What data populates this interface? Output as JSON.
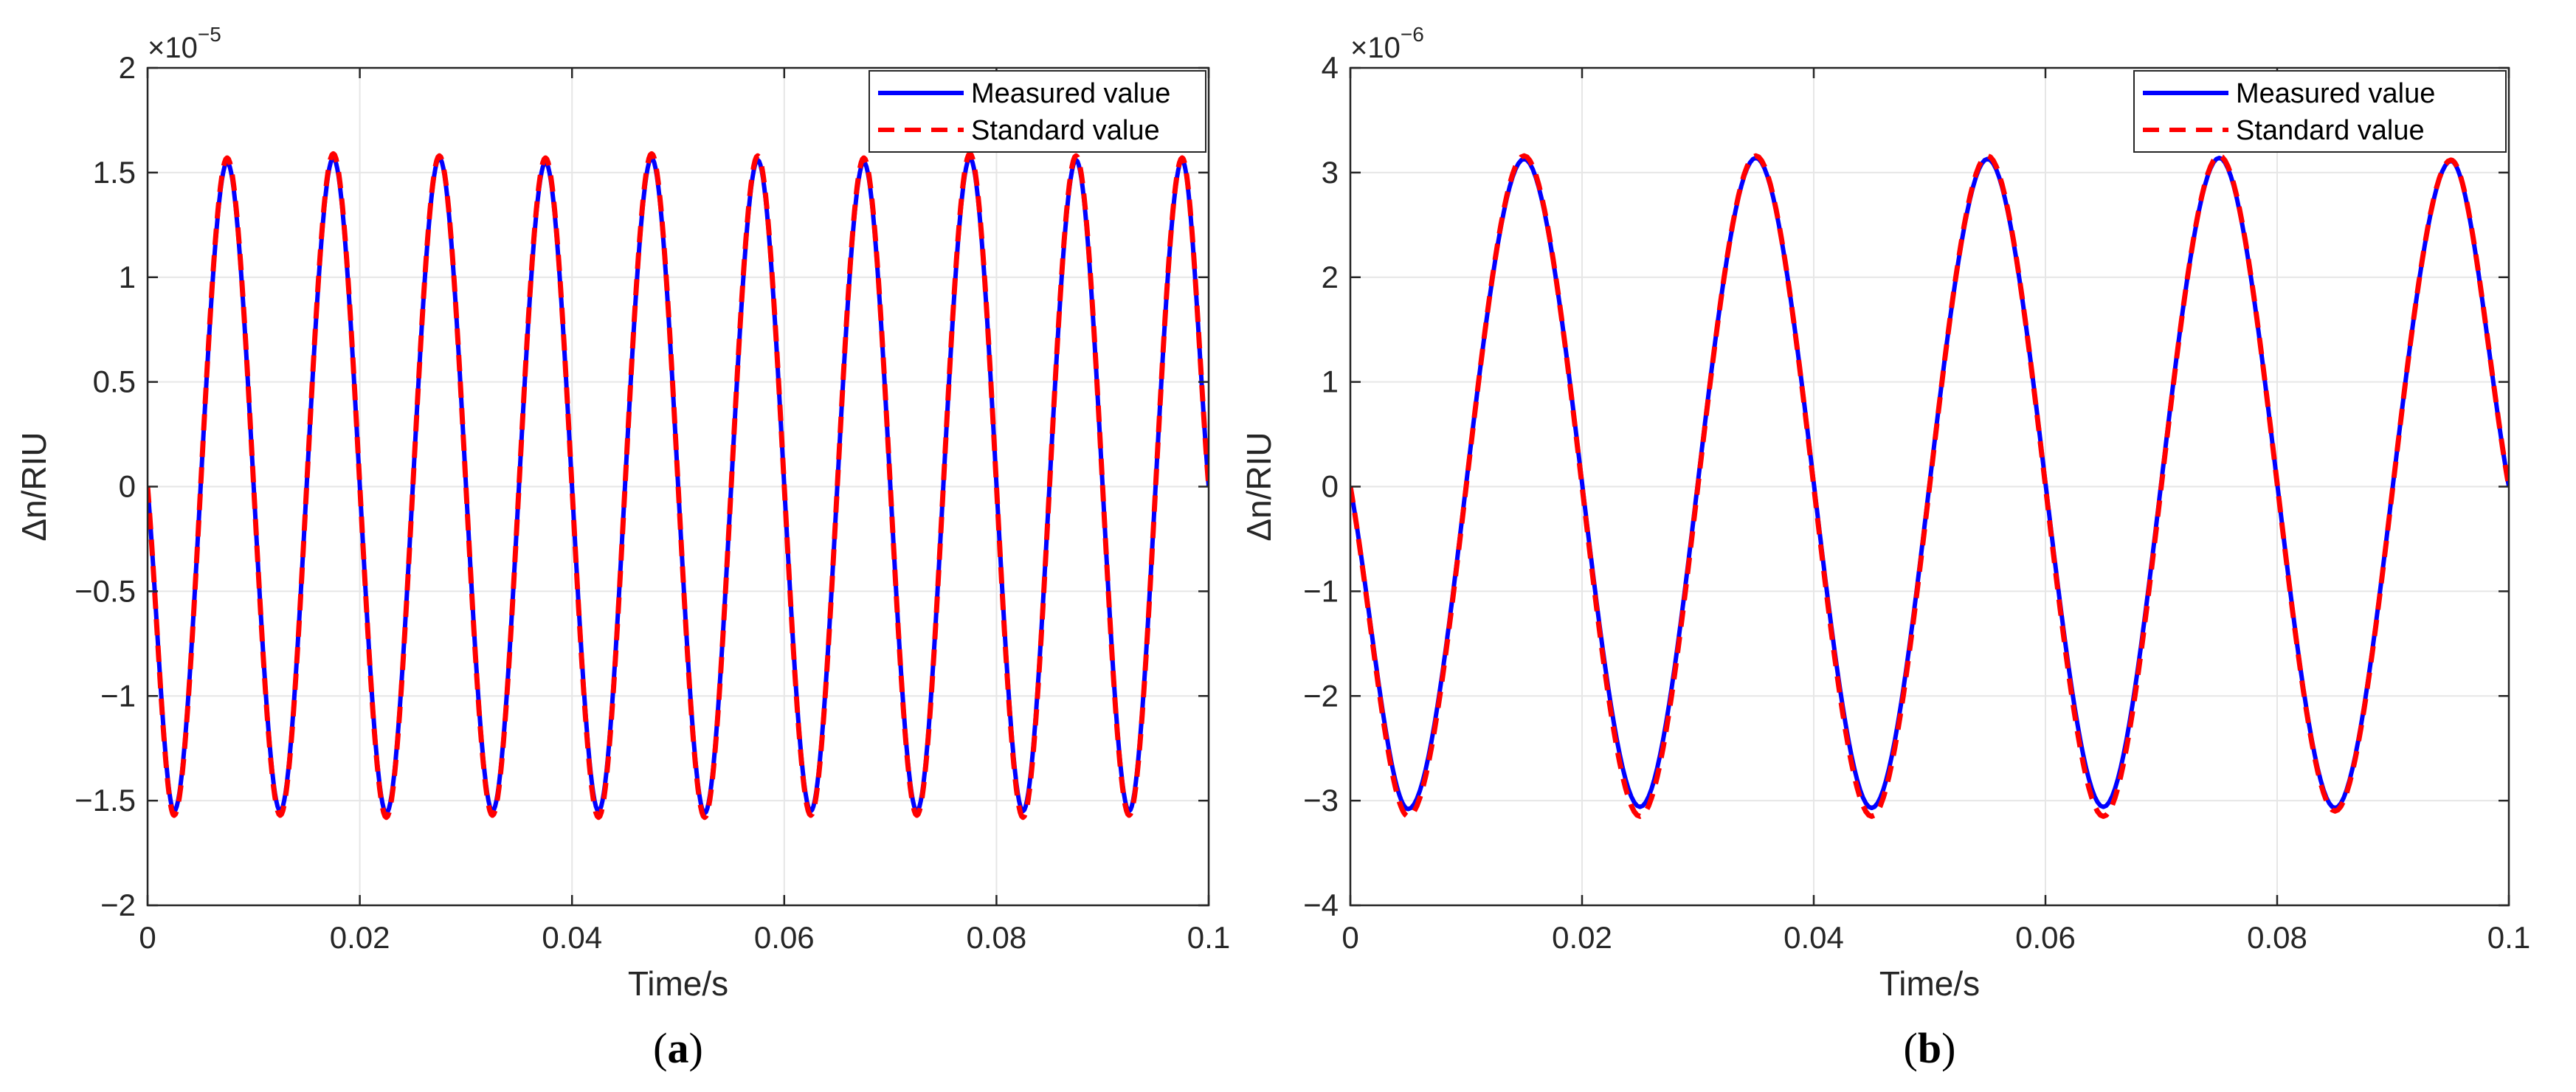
{
  "colors": {
    "measured": "#0000ff",
    "standard": "#ff0000",
    "grid": "#e6e6e6",
    "axis": "#262626"
  },
  "chart_data": [
    {
      "type": "line",
      "panel_label": "a",
      "xlabel": "Time/s",
      "ylabel": "Δn/RIU",
      "multiplier_base": "×10",
      "multiplier_exp": "−5",
      "xlim": [
        0,
        0.1
      ],
      "ylim": [
        -2,
        2
      ],
      "scale": 1e-05,
      "x_ticks": [
        0,
        0.02,
        0.04,
        0.06,
        0.08,
        0.1
      ],
      "x_tick_labels": [
        "0",
        "0.02",
        "0.04",
        "0.06",
        "0.08",
        "0.1"
      ],
      "y_ticks": [
        -2,
        -1.5,
        -1,
        -0.5,
        0,
        0.5,
        1,
        1.5,
        2
      ],
      "y_tick_labels": [
        "−2",
        "−1.5",
        "−1",
        "−0.5",
        "0",
        "0.5",
        "1",
        "1.5",
        "2"
      ],
      "grid": true,
      "legend_position": "top-right",
      "series": [
        {
          "name": "Measured value",
          "color": "#0000ff",
          "style": "solid",
          "x": [
            0,
            0.0025,
            0.0075,
            0.0125,
            0.0175,
            0.0225,
            0.0275,
            0.0325,
            0.0375,
            0.0425,
            0.0475,
            0.0525,
            0.0575,
            0.0625,
            0.0675,
            0.0725,
            0.0775,
            0.0825,
            0.0875,
            0.0925,
            0.0975,
            0.1
          ],
          "y": [
            0,
            -1.55,
            1.55,
            -1.55,
            1.57,
            -1.56,
            1.57,
            -1.55,
            1.55,
            -1.55,
            1.57,
            -1.56,
            1.56,
            -1.55,
            1.55,
            -1.55,
            1.57,
            -1.55,
            1.56,
            -1.55,
            1.56,
            0
          ]
        },
        {
          "name": "Standard value",
          "color": "#ff0000",
          "style": "dashed",
          "x": [
            0,
            0.0025,
            0.0075,
            0.0125,
            0.0175,
            0.0225,
            0.0275,
            0.0325,
            0.0375,
            0.0425,
            0.0475,
            0.0525,
            0.0575,
            0.0625,
            0.0675,
            0.0725,
            0.0775,
            0.0825,
            0.0875,
            0.0925,
            0.0975,
            0.1
          ],
          "y": [
            0,
            -1.57,
            1.57,
            -1.57,
            1.59,
            -1.58,
            1.58,
            -1.57,
            1.57,
            -1.58,
            1.59,
            -1.58,
            1.58,
            -1.57,
            1.57,
            -1.57,
            1.59,
            -1.58,
            1.58,
            -1.57,
            1.57,
            0
          ]
        }
      ]
    },
    {
      "type": "line",
      "panel_label": "b",
      "xlabel": "Time/s",
      "ylabel": "Δn/RIU",
      "multiplier_base": "×10",
      "multiplier_exp": "−6",
      "xlim": [
        0,
        0.1
      ],
      "ylim": [
        -4,
        4
      ],
      "scale": 1e-06,
      "x_ticks": [
        0,
        0.02,
        0.04,
        0.06,
        0.08,
        0.1
      ],
      "x_tick_labels": [
        "0",
        "0.02",
        "0.04",
        "0.06",
        "0.08",
        "0.1"
      ],
      "y_ticks": [
        -4,
        -3,
        -2,
        -1,
        0,
        1,
        2,
        3,
        4
      ],
      "y_tick_labels": [
        "−4",
        "−3",
        "−2",
        "−1",
        "0",
        "1",
        "2",
        "3",
        "4"
      ],
      "grid": true,
      "legend_position": "top-right",
      "series": [
        {
          "name": "Measured value",
          "color": "#0000ff",
          "style": "solid",
          "x": [
            0,
            0.005,
            0.015,
            0.025,
            0.035,
            0.045,
            0.055,
            0.065,
            0.075,
            0.085,
            0.095,
            0.1
          ],
          "y": [
            0,
            -3.08,
            3.13,
            -3.06,
            3.14,
            -3.07,
            3.13,
            -3.06,
            3.14,
            -3.07,
            3.11,
            0
          ]
        },
        {
          "name": "Standard value",
          "color": "#ff0000",
          "style": "dashed",
          "x": [
            0,
            0.005,
            0.015,
            0.025,
            0.035,
            0.045,
            0.055,
            0.065,
            0.075,
            0.085,
            0.095,
            0.1
          ],
          "y": [
            0,
            -3.15,
            3.16,
            -3.15,
            3.16,
            -3.15,
            3.16,
            -3.15,
            3.16,
            -3.1,
            3.12,
            0
          ]
        }
      ]
    }
  ]
}
